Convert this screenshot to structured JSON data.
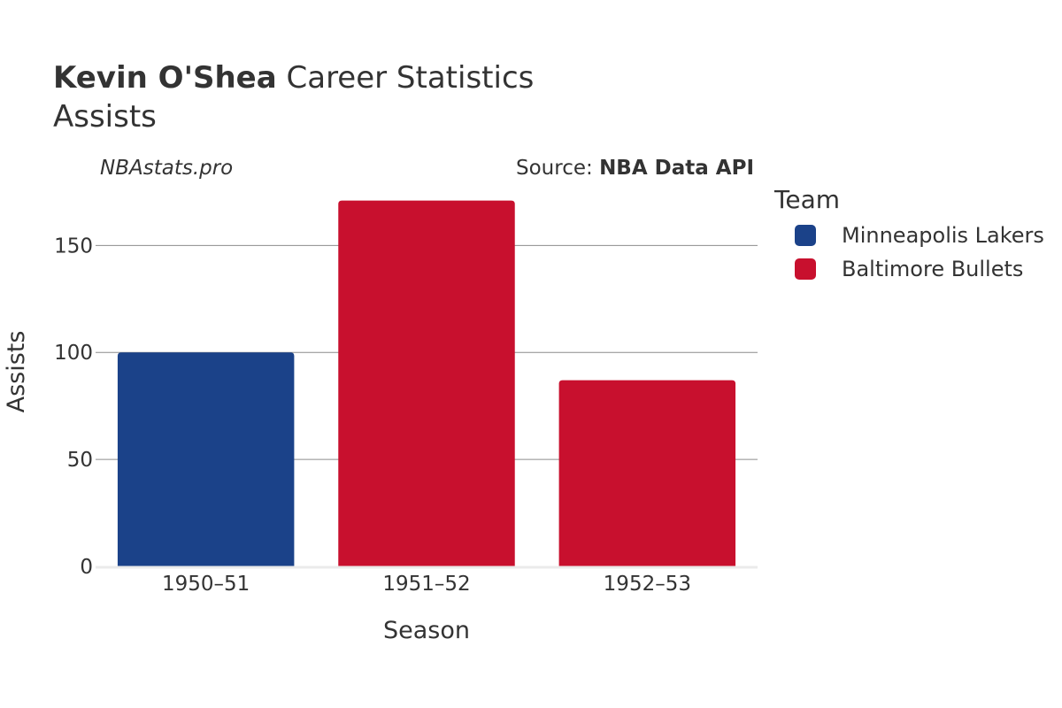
{
  "header": {
    "player_name": "Kevin O'Shea",
    "title_rest": "Career Statistics",
    "subtitle": "Assists",
    "watermark": "NBAstats.pro",
    "source_prefix": "Source: ",
    "source_name": "NBA Data API"
  },
  "legend": {
    "title": "Team",
    "items": [
      {
        "label": "Minneapolis Lakers",
        "color": "#1b4289"
      },
      {
        "label": "Baltimore Bullets",
        "color": "#c8102e"
      }
    ]
  },
  "chart_data": {
    "type": "bar",
    "categories": [
      "1950–51",
      "1951–52",
      "1952–53"
    ],
    "values": [
      100,
      171,
      87
    ],
    "bar_teams": [
      "Minneapolis Lakers",
      "Baltimore Bullets",
      "Baltimore Bullets"
    ],
    "series": [
      {
        "name": "Minneapolis Lakers",
        "values": [
          100,
          null,
          null
        ]
      },
      {
        "name": "Baltimore Bullets",
        "values": [
          null,
          171,
          87
        ]
      }
    ],
    "title": "Kevin O'Shea Career Statistics",
    "subtitle": "Assists",
    "xlabel": "Season",
    "ylabel": "Assists",
    "ylim": [
      0,
      182
    ],
    "yticks": [
      0,
      50,
      100,
      150
    ],
    "grid": true,
    "legend_position": "right"
  }
}
